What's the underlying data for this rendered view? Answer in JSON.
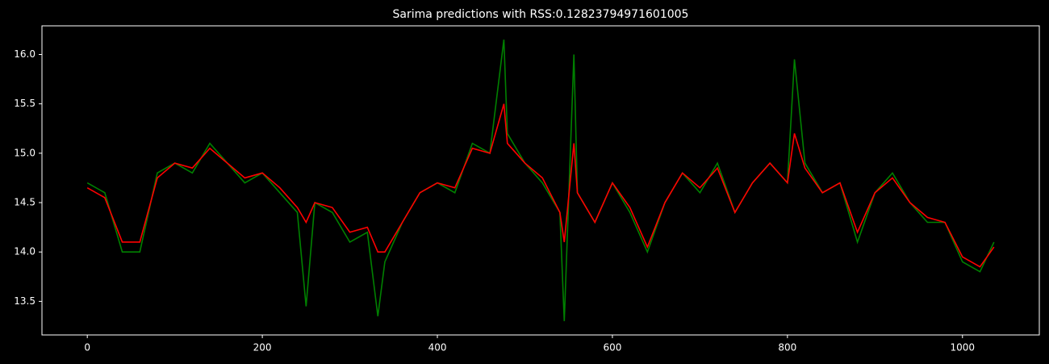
{
  "chart_data": {
    "type": "line",
    "title": "Sarima predictions with RSS:0.12823794971601005",
    "x": [
      0,
      20,
      40,
      60,
      80,
      100,
      120,
      140,
      160,
      180,
      200,
      220,
      240,
      250,
      260,
      280,
      300,
      320,
      332,
      340,
      360,
      380,
      400,
      420,
      440,
      460,
      476,
      480,
      500,
      520,
      540,
      545,
      556,
      560,
      580,
      600,
      620,
      640,
      660,
      680,
      700,
      720,
      740,
      760,
      780,
      800,
      808,
      820,
      840,
      860,
      880,
      900,
      920,
      940,
      960,
      980,
      1000,
      1020,
      1036
    ],
    "series": [
      {
        "color": "#008000",
        "values": [
          14.7,
          14.6,
          14.0,
          14.0,
          14.8,
          14.9,
          14.8,
          15.1,
          14.9,
          14.7,
          14.8,
          14.6,
          14.4,
          13.45,
          14.5,
          14.4,
          14.1,
          14.2,
          13.35,
          13.9,
          14.3,
          14.6,
          14.7,
          14.6,
          15.1,
          15.0,
          16.15,
          15.2,
          14.9,
          14.7,
          14.4,
          13.3,
          16.0,
          14.6,
          14.3,
          14.7,
          14.4,
          14.0,
          14.5,
          14.8,
          14.6,
          14.9,
          14.4,
          14.7,
          14.9,
          14.7,
          15.95,
          14.9,
          14.6,
          14.7,
          14.1,
          14.6,
          14.8,
          14.5,
          14.3,
          14.3,
          13.9,
          13.8,
          14.1
        ]
      },
      {
        "color": "#ff0000",
        "values": [
          14.65,
          14.55,
          14.1,
          14.1,
          14.75,
          14.9,
          14.85,
          15.05,
          14.9,
          14.75,
          14.8,
          14.65,
          14.45,
          14.3,
          14.5,
          14.45,
          14.2,
          14.25,
          14.0,
          14.0,
          14.3,
          14.6,
          14.7,
          14.65,
          15.05,
          15.0,
          15.5,
          15.1,
          14.9,
          14.75,
          14.4,
          14.1,
          15.1,
          14.6,
          14.3,
          14.7,
          14.45,
          14.05,
          14.5,
          14.8,
          14.65,
          14.85,
          14.4,
          14.7,
          14.9,
          14.7,
          15.2,
          14.85,
          14.6,
          14.7,
          14.2,
          14.6,
          14.75,
          14.5,
          14.35,
          14.3,
          13.95,
          13.85,
          14.05
        ]
      }
    ],
    "xlim": [
      -51.8,
      1087.8
    ],
    "ylim": [
      13.16,
      16.29
    ],
    "xticks": [
      0,
      200,
      400,
      600,
      800,
      1000
    ],
    "yticks": [
      13.5,
      {
        "value": 14,
        "label": "14.0"
      },
      14.5,
      {
        "value": 15,
        "label": "15.0"
      },
      15.5,
      {
        "value": 16,
        "label": "16.0"
      }
    ]
  }
}
